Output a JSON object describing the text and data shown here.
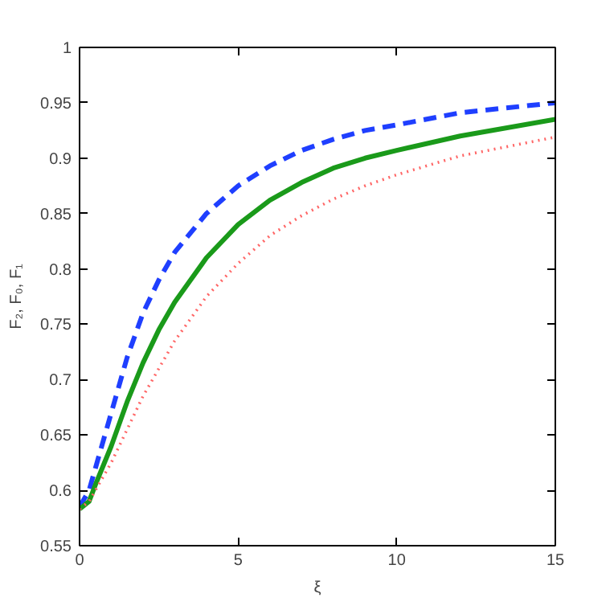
{
  "chart_data": {
    "type": "line",
    "xlabel": "ξ",
    "ylabel": "F₂, F₀, F₁",
    "xlim": [
      0,
      15
    ],
    "ylim": [
      0.55,
      1
    ],
    "xticks": [
      0,
      5,
      10,
      15
    ],
    "yticks": [
      0.55,
      0.6,
      0.65,
      0.7,
      0.75,
      0.8,
      0.85,
      0.9,
      0.95,
      1
    ],
    "grid": false,
    "x": [
      0,
      0.3,
      0.5,
      1,
      1.5,
      2,
      2.5,
      3,
      4,
      5,
      6,
      7,
      8,
      9,
      10,
      12,
      15
    ],
    "series": [
      {
        "color": "#1f3fff",
        "line_style": "dashed",
        "values": [
          0.585,
          0.6,
          0.62,
          0.67,
          0.72,
          0.76,
          0.79,
          0.815,
          0.85,
          0.875,
          0.893,
          0.907,
          0.917,
          0.925,
          0.93,
          0.941,
          0.95
        ]
      },
      {
        "color": "#1a9a1a",
        "line_style": "solid",
        "values": [
          0.583,
          0.59,
          0.605,
          0.64,
          0.68,
          0.715,
          0.745,
          0.77,
          0.81,
          0.84,
          0.862,
          0.878,
          0.891,
          0.9,
          0.907,
          0.92,
          0.935
        ]
      },
      {
        "color": "#ff6666",
        "line_style": "dotted",
        "values": [
          0.583,
          0.59,
          0.6,
          0.625,
          0.655,
          0.685,
          0.71,
          0.735,
          0.775,
          0.805,
          0.83,
          0.848,
          0.863,
          0.875,
          0.885,
          0.902,
          0.919
        ]
      }
    ]
  }
}
